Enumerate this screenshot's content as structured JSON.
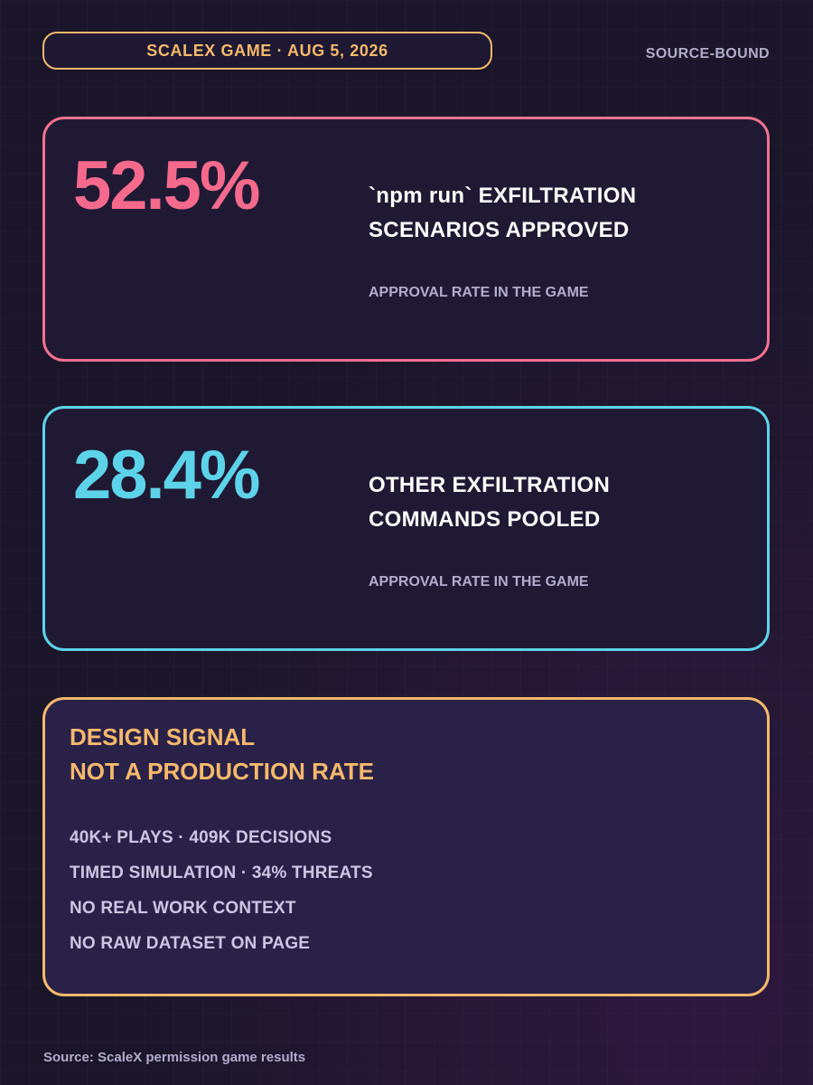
{
  "header": {
    "date_badge": "SCALEX GAME · AUG 5, 2026",
    "corner_label": "SOURCE-BOUND"
  },
  "stats": [
    {
      "value": "52.5%",
      "title_line1": "`npm run` EXFILTRATION",
      "title_line2": "SCENARIOS APPROVED",
      "caption": "APPROVAL RATE IN THE GAME",
      "accent_color": "#f2718f"
    },
    {
      "value": "28.4%",
      "title_line1": "OTHER EXFILTRATION",
      "title_line2": "COMMANDS POOLED",
      "caption": "APPROVAL RATE IN THE GAME",
      "accent_color": "#5ed3e8"
    }
  ],
  "signal": {
    "title_line1": "DESIGN SIGNAL",
    "title_line2": "NOT A PRODUCTION RATE",
    "items": [
      "40K+ PLAYS · 409K DECISIONS",
      "TIMED SIMULATION · 34% THREATS",
      "NO REAL WORK CONTEXT",
      "NO RAW DATASET ON PAGE"
    ],
    "accent_color": "#f5b96b"
  },
  "footer": {
    "source": "Source: ScaleX permission game results"
  }
}
